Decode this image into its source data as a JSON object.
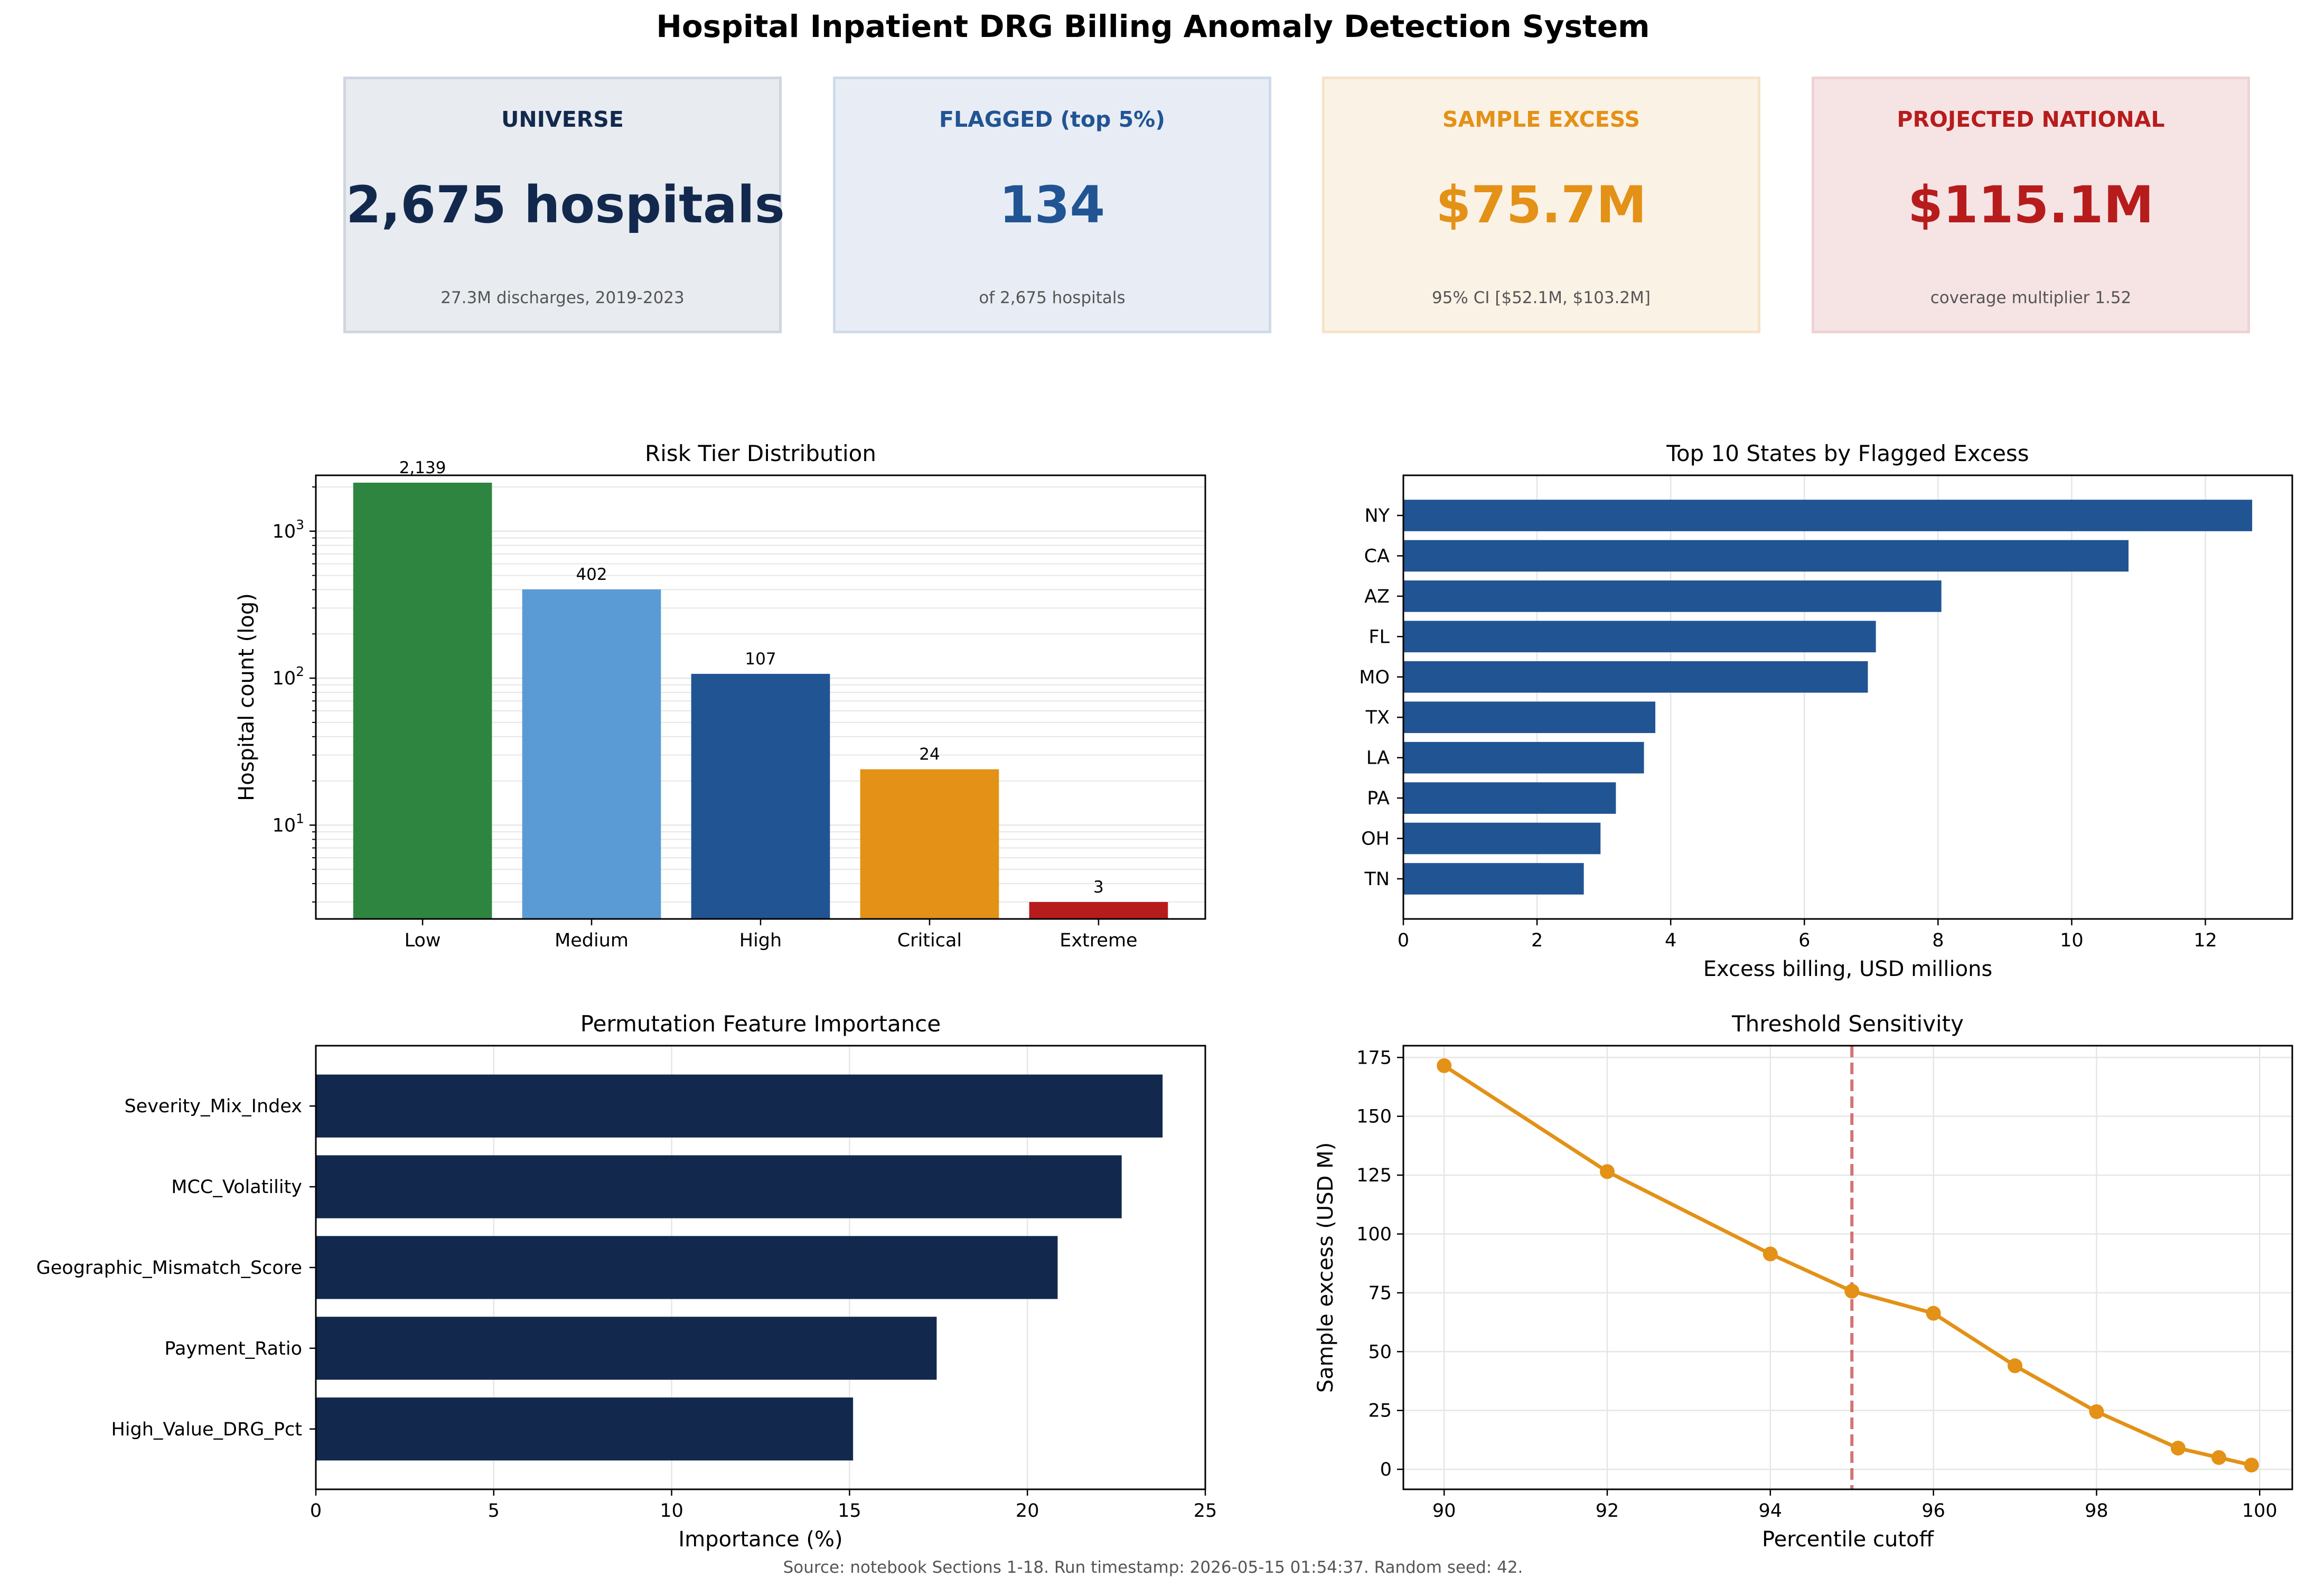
{
  "header": {
    "title": "Hospital Inpatient DRG Billing Anomaly Detection System"
  },
  "kpis": [
    {
      "label": "UNIVERSE",
      "value": "2,675 hospitals",
      "sub": "27.3M discharges, 2019-2023",
      "color": "#12294d",
      "bg": "#e8ebf0",
      "border": "#cfd6e0"
    },
    {
      "label": "FLAGGED (top 5%)",
      "value": "134",
      "sub": "of 2,675 hospitals",
      "color": "#215493",
      "bg": "#e8edf5",
      "border": "#cfdaea"
    },
    {
      "label": "SAMPLE EXCESS",
      "value": "$75.7M",
      "sub": "95% CI [$52.1M, $103.2M]",
      "color": "#e39117",
      "bg": "#fbf2e6",
      "border": "#f6e3c7"
    },
    {
      "label": "PROJECTED NATIONAL",
      "value": "$115.1M",
      "sub": "coverage multiplier 1.52",
      "color": "#b71c1c",
      "bg": "#f6e4e5",
      "border": "#eed2d3"
    }
  ],
  "chart_data": [
    {
      "type": "bar",
      "title": "Risk Tier Distribution",
      "ylabel": "Hospital count (log)",
      "yscale": "log",
      "ylim": [
        2.3,
        2400
      ],
      "categories": [
        "Low",
        "Medium",
        "High",
        "Critical",
        "Extreme"
      ],
      "values": [
        2139,
        402,
        107,
        24,
        3
      ],
      "data_labels": [
        "2,139",
        "402",
        "107",
        "24",
        "3"
      ],
      "colors": [
        "#2e8540",
        "#5b9bd5",
        "#215493",
        "#e39117",
        "#b71c1c"
      ],
      "yticks": [
        {
          "value": 10,
          "base": "10",
          "exp": "1"
        },
        {
          "value": 100,
          "base": "10",
          "exp": "2"
        },
        {
          "value": 1000,
          "base": "10",
          "exp": "3"
        }
      ],
      "grid": true
    },
    {
      "type": "bar",
      "orientation": "horizontal",
      "title": "Top 10 States by Flagged Excess",
      "xlabel": "Excess billing, USD millions",
      "categories": [
        "NY",
        "CA",
        "AZ",
        "FL",
        "MO",
        "TX",
        "LA",
        "PA",
        "OH",
        "TN"
      ],
      "values": [
        12.7,
        10.85,
        8.05,
        7.07,
        6.95,
        3.77,
        3.6,
        3.18,
        2.95,
        2.7
      ],
      "xlim": [
        0,
        13.3
      ],
      "xticks": [
        0,
        2,
        4,
        6,
        8,
        10,
        12
      ],
      "color": "#215493",
      "grid": true
    },
    {
      "type": "bar",
      "orientation": "horizontal",
      "title": "Permutation Feature Importance",
      "xlabel": "Importance (%)",
      "categories": [
        "Severity_Mix_Index",
        "MCC_Volatility",
        "Geographic_Mismatch_Score",
        "Payment_Ratio",
        "High_Value_DRG_Pct"
      ],
      "values": [
        23.8,
        22.65,
        20.85,
        17.45,
        15.1
      ],
      "xlim": [
        0,
        25
      ],
      "xticks": [
        0,
        5,
        10,
        15,
        20,
        25
      ],
      "color": "#12294d",
      "grid": true
    },
    {
      "type": "line",
      "title": "Threshold Sensitivity",
      "xlabel": "Percentile cutoff",
      "ylabel": "Sample excess (USD M)",
      "x": [
        90,
        92,
        94,
        95,
        96,
        97,
        98,
        99,
        99.5,
        99.9
      ],
      "y": [
        171.5,
        126.5,
        91.5,
        75.7,
        66.3,
        44,
        24.5,
        9,
        5,
        1.8
      ],
      "xlim": [
        89.5,
        100.4
      ],
      "ylim": [
        -8.5,
        180
      ],
      "xticks": [
        90,
        92,
        94,
        96,
        98,
        100
      ],
      "yticks": [
        0,
        25,
        50,
        75,
        100,
        125,
        150,
        175
      ],
      "reference_line_x": 95,
      "color": "#e39117",
      "reference_color": "#cd5c5c",
      "grid": true
    }
  ],
  "footer": {
    "text": "Source: notebook Sections 1-18. Run timestamp: 2026-05-15 01:54:37. Random seed: 42."
  }
}
